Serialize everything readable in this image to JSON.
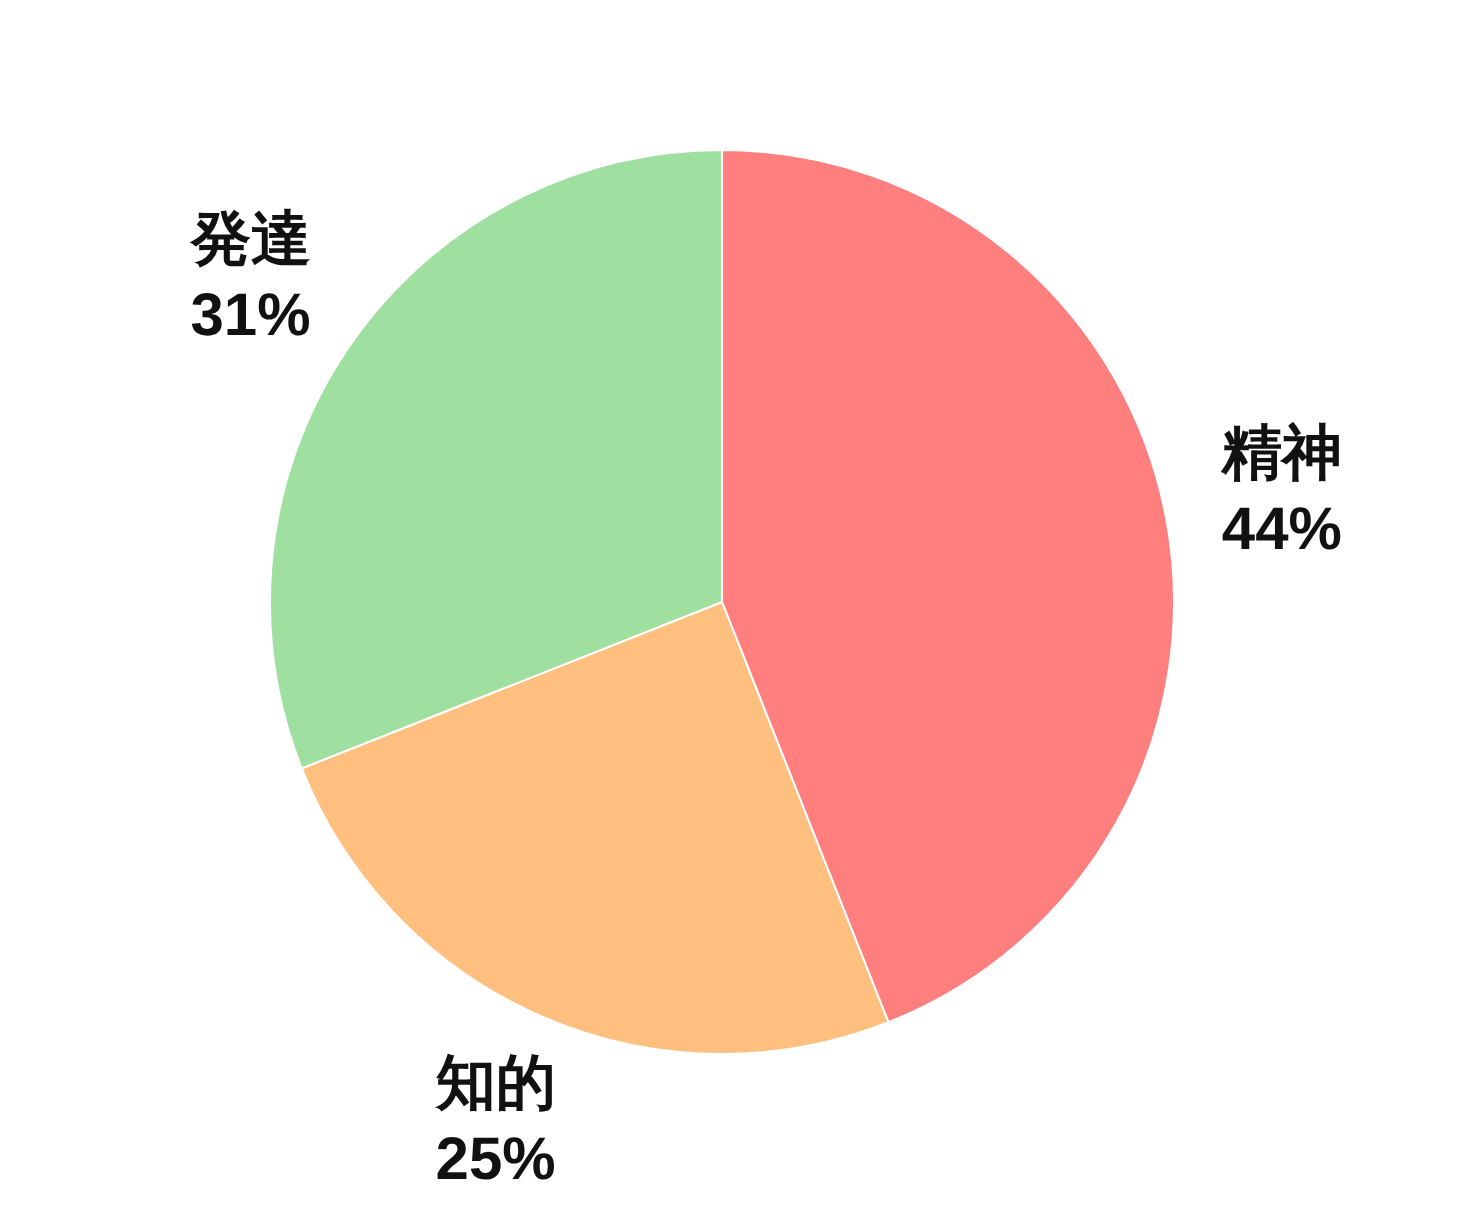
{
  "chart_data": {
    "type": "pie",
    "categories": [
      "精神",
      "知的",
      "発達"
    ],
    "values": [
      44,
      25,
      31
    ],
    "colors": [
      "#ff7f7f",
      "#ffbf7f",
      "#9fdf9f"
    ],
    "value_labels": [
      "44%",
      "25%",
      "31%"
    ]
  }
}
